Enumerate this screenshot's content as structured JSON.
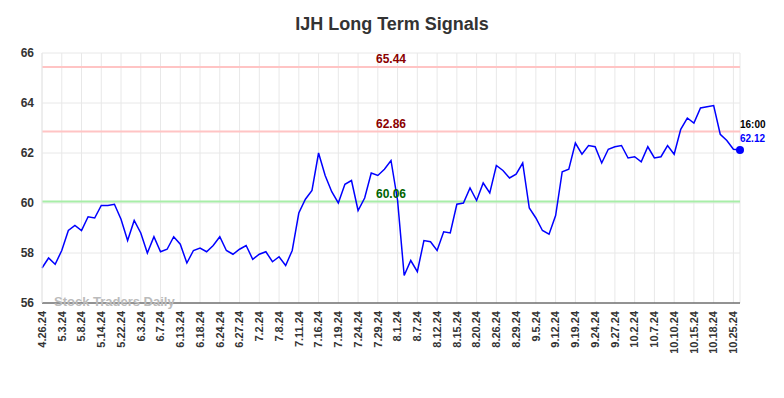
{
  "chart_data": {
    "type": "line",
    "title": "IJH Long Term Signals",
    "watermark": "Stock Traders Daily",
    "categories": [
      "4.26.24",
      null,
      null,
      "5.3.24",
      null,
      null,
      "5.8.24",
      null,
      null,
      "5.14.24",
      null,
      null,
      "5.22.24",
      null,
      null,
      "6.3.24",
      null,
      null,
      "6.7.24",
      null,
      null,
      "6.13.24",
      null,
      null,
      "6.18.24",
      null,
      null,
      "6.24.24",
      null,
      null,
      "6.27.24",
      null,
      null,
      "7.2.24",
      null,
      null,
      "7.8.24",
      null,
      null,
      "7.11.24",
      null,
      null,
      "7.16.24",
      null,
      null,
      "7.19.24",
      null,
      null,
      "7.24.24",
      null,
      null,
      "7.29.24",
      null,
      null,
      "8.1.24",
      null,
      null,
      "8.7.24",
      null,
      null,
      "8.12.24",
      null,
      null,
      "8.15.24",
      null,
      null,
      "8.20.24",
      null,
      null,
      "8.26.24",
      null,
      null,
      "8.29.24",
      null,
      null,
      "9.5.24",
      null,
      null,
      "9.12.24",
      null,
      null,
      "9.19.24",
      null,
      null,
      "9.24.24",
      null,
      null,
      "9.27.24",
      null,
      null,
      "10.2.24",
      null,
      null,
      "10.7.24",
      null,
      null,
      "10.10.24",
      null,
      null,
      "10.15.24",
      null,
      null,
      "10.18.24",
      null,
      null,
      "10.25.24",
      null
    ],
    "values": [
      57.4,
      57.8,
      57.55,
      58.1,
      58.9,
      59.1,
      58.9,
      59.45,
      59.4,
      59.9,
      59.9,
      59.95,
      59.35,
      58.5,
      59.3,
      58.8,
      58.0,
      58.65,
      58.05,
      58.15,
      58.65,
      58.35,
      57.6,
      58.1,
      58.2,
      58.05,
      58.3,
      58.65,
      58.1,
      57.95,
      58.15,
      58.3,
      57.75,
      57.95,
      58.05,
      57.65,
      57.85,
      57.5,
      58.1,
      59.6,
      60.15,
      60.5,
      62.0,
      61.1,
      60.45,
      60.0,
      60.75,
      60.9,
      59.7,
      60.2,
      61.2,
      61.1,
      61.35,
      61.7,
      60.1,
      57.1,
      57.7,
      57.25,
      58.5,
      58.45,
      58.1,
      58.85,
      58.8,
      59.95,
      60.0,
      60.6,
      60.1,
      60.8,
      60.4,
      61.5,
      61.3,
      61.0,
      61.15,
      61.6,
      59.8,
      59.4,
      58.9,
      58.75,
      59.5,
      61.25,
      61.35,
      62.4,
      61.95,
      62.3,
      62.25,
      61.6,
      62.15,
      62.25,
      62.3,
      61.8,
      61.85,
      61.65,
      62.25,
      61.8,
      61.85,
      62.3,
      61.95,
      62.95,
      63.4,
      63.2,
      63.8,
      63.85,
      63.9,
      62.75,
      62.5,
      62.15,
      62.12
    ],
    "color": "#0000ff",
    "ylim": [
      56,
      66
    ],
    "yticks": [
      56,
      58,
      60,
      62,
      64,
      66
    ],
    "grid": true,
    "reference_lines": [
      {
        "value": 65.44,
        "color": "#ffc4c4"
      },
      {
        "value": 62.86,
        "color": "#ffc4c4"
      },
      {
        "value": 60.06,
        "color": "#a8eea8"
      }
    ],
    "last_price_label": {
      "time": "16:00",
      "value": 62.12
    }
  }
}
